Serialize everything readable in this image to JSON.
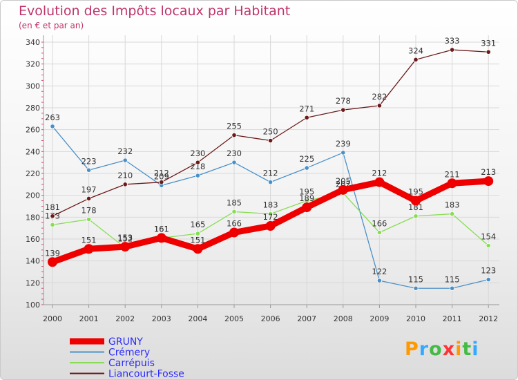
{
  "header": {
    "title": "Evolution des Impôts locaux par Habitant",
    "subtitle": "(en € et par an)"
  },
  "logo": {
    "text": "Proxiti",
    "letters": [
      {
        "ch": "P",
        "color": "#ff9900"
      },
      {
        "ch": "r",
        "color": "#33aaff"
      },
      {
        "ch": "o",
        "color": "#44bb44"
      },
      {
        "ch": "x",
        "color": "#ff3333"
      },
      {
        "ch": "i",
        "color": "#ff9900"
      },
      {
        "ch": "t",
        "color": "#44bb44"
      },
      {
        "ch": "i",
        "color": "#33aaff"
      }
    ]
  },
  "chart_data": {
    "type": "line",
    "title": "Evolution des Impôts locaux par Habitant",
    "subtitle": "(en € et par an)",
    "xlabel": "",
    "ylabel": "",
    "ylim": [
      100,
      340
    ],
    "yticks": [
      100,
      120,
      140,
      160,
      180,
      200,
      220,
      240,
      260,
      280,
      300,
      320,
      340
    ],
    "categories": [
      "2000",
      "2001",
      "2002",
      "2003",
      "2004",
      "2005",
      "2006",
      "2007",
      "2008",
      "2009",
      "2010",
      "2011",
      "2012"
    ],
    "grid": true,
    "legend_position": "bottom-left",
    "series": [
      {
        "name": "GRUNY",
        "color": "#ee0000",
        "values": [
          139,
          151,
          153,
          161,
          151,
          166,
          172,
          189,
          205,
          212,
          195,
          211,
          213
        ]
      },
      {
        "name": "Crémery",
        "color": "#4a90c8",
        "values": [
          263,
          223,
          232,
          209,
          218,
          230,
          212,
          225,
          239,
          122,
          115,
          115,
          123
        ]
      },
      {
        "name": "Carrépuis",
        "color": "#88dd55",
        "values": [
          173,
          178,
          152,
          161,
          165,
          185,
          183,
          195,
          202,
          166,
          181,
          183,
          154
        ]
      },
      {
        "name": "Liancourt-Fosse",
        "color": "#6b1a1a",
        "values": [
          181,
          197,
          210,
          212,
          230,
          255,
          250,
          271,
          278,
          282,
          324,
          333,
          331
        ]
      }
    ]
  }
}
